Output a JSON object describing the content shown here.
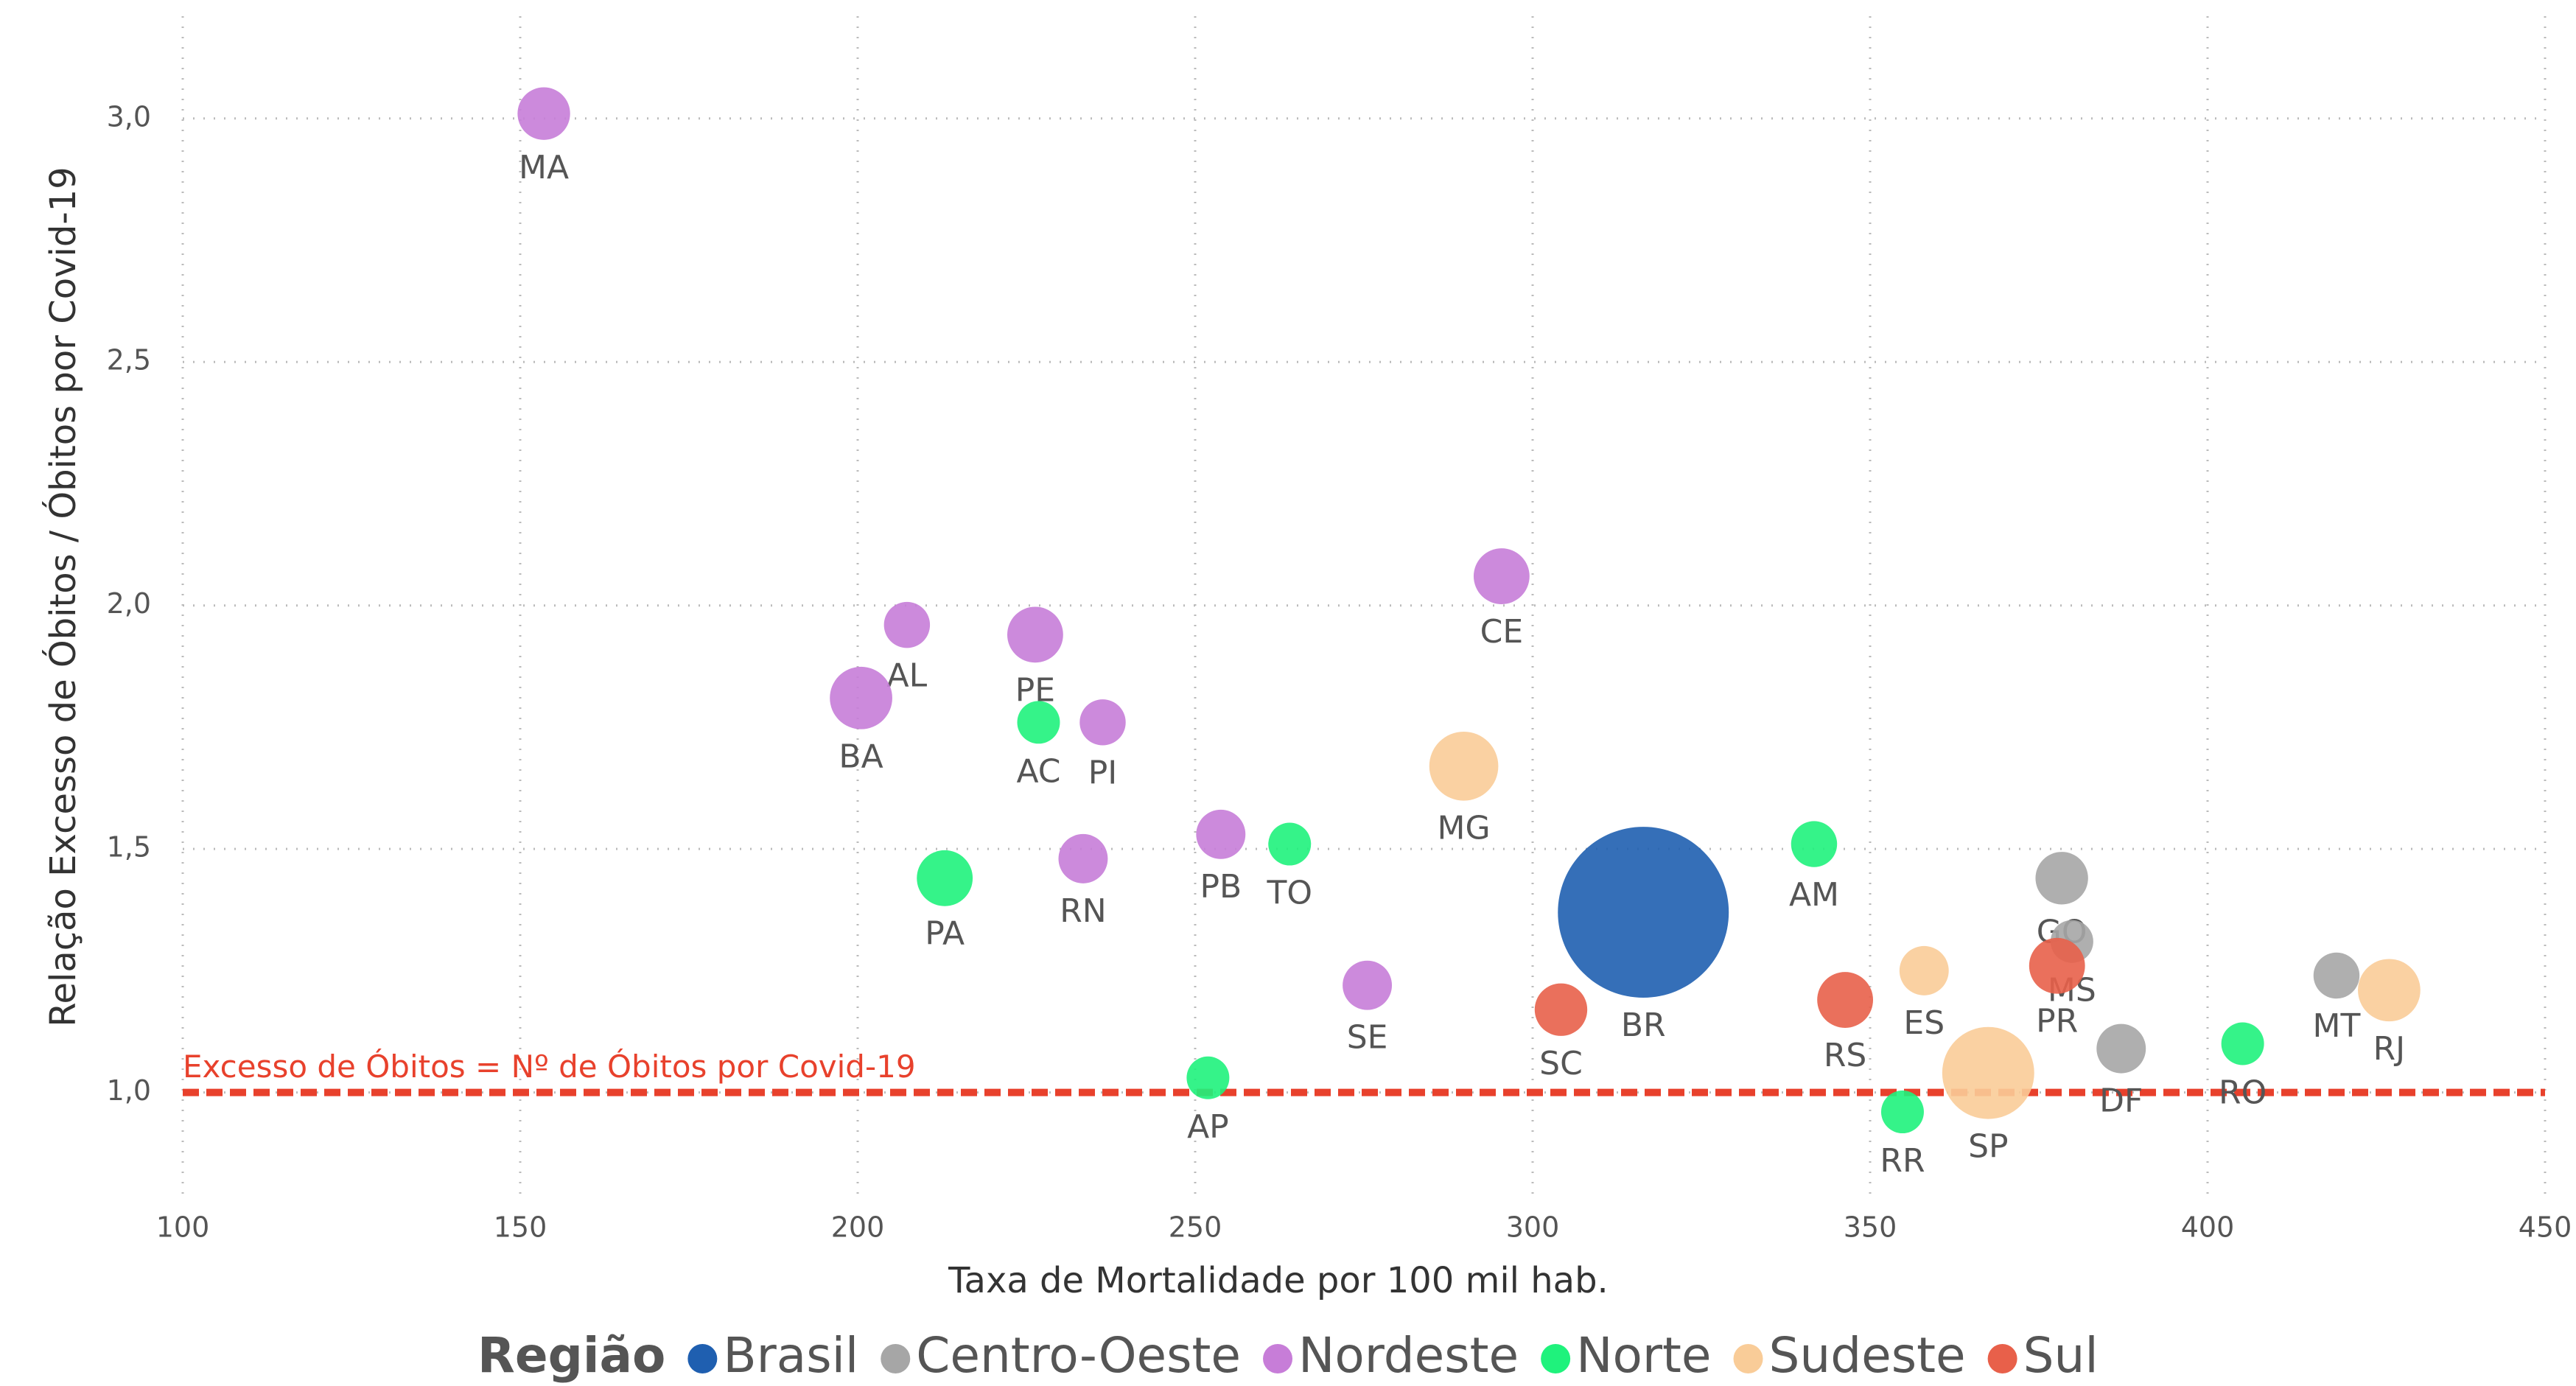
{
  "chart_data": {
    "type": "scatter",
    "x_label": "Taxa de Mortalidade por 100 mil hab.",
    "y_label": "Relação Excesso de Óbitos / Óbitos por Covid-19",
    "legend_title": "Região",
    "xlim": [
      100,
      450
    ],
    "xticks": [
      100,
      150,
      200,
      250,
      300,
      350,
      400,
      450
    ],
    "ylim": [
      0.78,
      3.21
    ],
    "yticks": [
      {
        "value": 1.0,
        "label": "1,0"
      },
      {
        "value": 1.5,
        "label": "1,5"
      },
      {
        "value": 2.0,
        "label": "2,0"
      },
      {
        "value": 2.5,
        "label": "2,5"
      },
      {
        "value": 3.0,
        "label": "3,0"
      }
    ],
    "grid": true,
    "reference_line": {
      "value": 1.0,
      "label": "Excesso de Óbitos = Nº de Óbitos por Covid-19",
      "color": "#e8412c"
    },
    "series": [
      {
        "name": "Brasil",
        "color": "#1f5fb0",
        "labels": [
          "BR"
        ],
        "x": [
          316.4
        ],
        "values": [
          1.37
        ],
        "sizes": [
          2704
        ]
      },
      {
        "name": "Centro-Oeste",
        "color": "#a6a6a6",
        "labels": [
          "GO",
          "MS",
          "DF",
          "MT"
        ],
        "x": [
          378.4,
          379.9,
          387.2,
          419.1
        ],
        "values": [
          1.44,
          1.31,
          1.09,
          1.24
        ],
        "sizes": [
          256,
          169,
          225,
          196
        ]
      },
      {
        "name": "Nordeste",
        "color": "#c77dd8",
        "labels": [
          "MA",
          "AL",
          "PE",
          "BA",
          "PI",
          "CE",
          "RN",
          "PB",
          "SE"
        ],
        "x": [
          153.5,
          207.3,
          226.3,
          200.5,
          236.3,
          295.4,
          233.4,
          253.8,
          275.5
        ],
        "values": [
          3.01,
          1.96,
          1.94,
          1.81,
          1.76,
          2.06,
          1.48,
          1.53,
          1.22
        ],
        "sizes": [
          256,
          196,
          289,
          361,
          196,
          289,
          225,
          225,
          225
        ]
      },
      {
        "name": "Norte",
        "color": "#1ff27c",
        "labels": [
          "AC",
          "PA",
          "TO",
          "AP",
          "AM",
          "RR",
          "RO"
        ],
        "x": [
          226.8,
          212.9,
          264.0,
          251.9,
          341.7,
          354.8,
          405.2
        ],
        "values": [
          1.76,
          1.44,
          1.51,
          1.03,
          1.51,
          0.96,
          1.1
        ],
        "sizes": [
          169,
          289,
          169,
          169,
          196,
          169,
          169
        ]
      },
      {
        "name": "Sudeste",
        "color": "#f9cc98",
        "labels": [
          "MG",
          "ES",
          "SP",
          "RJ"
        ],
        "x": [
          289.8,
          358.0,
          367.5,
          426.9
        ],
        "values": [
          1.67,
          1.25,
          1.04,
          1.21
        ],
        "sizes": [
          441,
          225,
          784,
          361
        ]
      },
      {
        "name": "Sul",
        "color": "#e8604a",
        "labels": [
          "SC",
          "RS",
          "PR"
        ],
        "x": [
          304.2,
          346.3,
          377.7
        ],
        "values": [
          1.17,
          1.19,
          1.26
        ],
        "sizes": [
          256,
          289,
          289
        ]
      }
    ]
  }
}
